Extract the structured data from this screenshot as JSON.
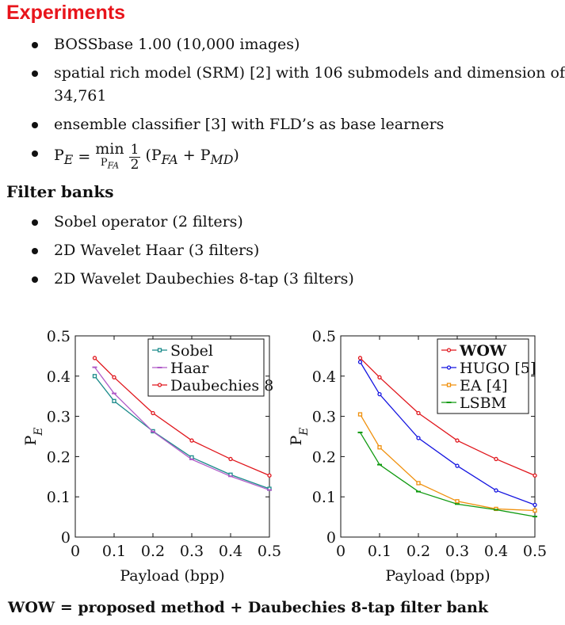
{
  "experiments": {
    "heading": "Experiments",
    "items": [
      "BOSSbase 1.00 (10,000 images)",
      "spatial rich model (SRM) [2] with 106 submodels and dimension of 34,761",
      "ensemble classifier [3] with FLD’s as base learners"
    ],
    "formula": {
      "lhs": "P",
      "lhs_sub": "E",
      "eq": "=",
      "op": "min",
      "op_sub": "P",
      "op_sub_sub": "FA",
      "frac_num": "1",
      "frac_den": "2",
      "rhs": "(P",
      "rhs_sub1": "FA",
      "plus": " + P",
      "rhs_sub2": "MD",
      "close": ")"
    }
  },
  "filter_banks": {
    "heading": "Filter banks",
    "items": [
      "Sobel operator (2 filters)",
      "2D Wavelet Haar (3 filters)",
      "2D Wavelet Daubechies 8-tap (3 filters)"
    ]
  },
  "footer": "WOW = proposed method + Daubechies 8-tap filter bank",
  "chart_data": [
    {
      "type": "line",
      "xlabel": "Payload (bpp)",
      "ylabel": "P",
      "ylabel_sub": "E",
      "xlim": [
        0,
        0.5
      ],
      "ylim": [
        0,
        0.5
      ],
      "xticks": [
        "0",
        "0.1",
        "0.2",
        "0.3",
        "0.4",
        "0.5"
      ],
      "yticks": [
        "0",
        "0.1",
        "0.2",
        "0.3",
        "0.4",
        "0.5"
      ],
      "legend_position": "top-right",
      "x": [
        0.05,
        0.1,
        0.2,
        0.3,
        0.4,
        0.5
      ],
      "series": [
        {
          "name": "Sobel",
          "color": "#1a8a8a",
          "marker": "square",
          "bold": false,
          "values": [
            0.4,
            0.338,
            0.263,
            0.198,
            0.155,
            0.12
          ]
        },
        {
          "name": "Haar",
          "color": "#b05cc8",
          "marker": "dash",
          "bold": false,
          "values": [
            0.422,
            0.357,
            0.262,
            0.193,
            0.151,
            0.117
          ]
        },
        {
          "name": "Daubechies 8",
          "color": "#e0161c",
          "marker": "circle",
          "bold": false,
          "values": [
            0.445,
            0.397,
            0.308,
            0.24,
            0.194,
            0.153
          ]
        }
      ]
    },
    {
      "type": "line",
      "xlabel": "Payload (bpp)",
      "ylabel": "P",
      "ylabel_sub": "E",
      "xlim": [
        0,
        0.5
      ],
      "ylim": [
        0,
        0.5
      ],
      "xticks": [
        "0",
        "0.1",
        "0.2",
        "0.3",
        "0.4",
        "0.5"
      ],
      "yticks": [
        "0",
        "0.1",
        "0.2",
        "0.3",
        "0.4",
        "0.5"
      ],
      "legend_position": "top-right",
      "x": [
        0.05,
        0.1,
        0.2,
        0.3,
        0.4,
        0.5
      ],
      "series": [
        {
          "name": "WOW",
          "color": "#e0161c",
          "marker": "circle",
          "bold": true,
          "values": [
            0.445,
            0.397,
            0.308,
            0.24,
            0.194,
            0.153
          ]
        },
        {
          "name": "HUGO [5]",
          "color": "#1414e0",
          "marker": "circle",
          "bold": false,
          "values": [
            0.435,
            0.355,
            0.246,
            0.177,
            0.116,
            0.08
          ]
        },
        {
          "name": "EA [4]",
          "color": "#f0900c",
          "marker": "square",
          "bold": false,
          "values": [
            0.305,
            0.223,
            0.134,
            0.089,
            0.07,
            0.066
          ]
        },
        {
          "name": "LSBM",
          "color": "#109a10",
          "marker": "dash",
          "bold": false,
          "values": [
            0.26,
            0.18,
            0.113,
            0.082,
            0.068,
            0.051
          ]
        }
      ]
    }
  ]
}
